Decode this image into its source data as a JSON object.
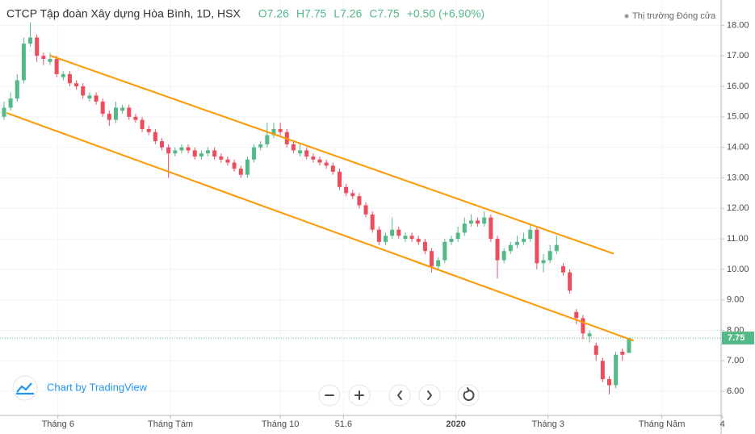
{
  "chart_data": {
    "type": "candlestick",
    "title": "CTCP Tập đoàn Xây dựng Hòa Bình, 1D, HSX",
    "header_values": [
      "O7.26",
      "H7.75",
      "L7.26",
      "C7.75",
      "+0.50 (+6.90%)"
    ],
    "status": "Thị trường Đóng cửa",
    "watermark": "Chart by TradingView",
    "up_color": "#53b987",
    "down_color": "#eb4d5c",
    "line_color": "#ff9800",
    "candles": [
      [
        15.0,
        15.5,
        14.9,
        15.3
      ],
      [
        15.3,
        15.8,
        15.2,
        15.6
      ],
      [
        15.6,
        16.4,
        15.5,
        16.2
      ],
      [
        16.2,
        17.6,
        16.1,
        17.4
      ],
      [
        17.4,
        18.1,
        17.3,
        17.6
      ],
      [
        17.6,
        17.7,
        16.8,
        17.0
      ],
      [
        17.0,
        17.1,
        16.7,
        16.9
      ],
      [
        16.8,
        17.1,
        16.7,
        16.9
      ],
      [
        16.9,
        17.0,
        16.3,
        16.4
      ],
      [
        16.3,
        16.5,
        16.2,
        16.4
      ],
      [
        16.4,
        16.5,
        16.0,
        16.1
      ],
      [
        16.1,
        16.2,
        15.9,
        16.0
      ],
      [
        16.0,
        16.1,
        15.6,
        15.7
      ],
      [
        15.6,
        15.8,
        15.5,
        15.7
      ],
      [
        15.7,
        15.8,
        15.4,
        15.5
      ],
      [
        15.5,
        15.6,
        15.0,
        15.1
      ],
      [
        15.1,
        15.2,
        14.7,
        14.9
      ],
      [
        14.9,
        15.5,
        14.8,
        15.3
      ],
      [
        15.2,
        15.4,
        15.1,
        15.3
      ],
      [
        15.3,
        15.4,
        14.9,
        15.0
      ],
      [
        15.0,
        15.1,
        14.8,
        14.9
      ],
      [
        14.9,
        15.0,
        14.5,
        14.6
      ],
      [
        14.6,
        14.7,
        14.4,
        14.5
      ],
      [
        14.5,
        14.6,
        14.1,
        14.2
      ],
      [
        14.2,
        14.3,
        13.9,
        14.0
      ],
      [
        14.0,
        14.1,
        13.0,
        13.8
      ],
      [
        13.8,
        14.0,
        13.7,
        13.9
      ],
      [
        13.9,
        14.1,
        13.8,
        14.0
      ],
      [
        14.0,
        14.1,
        13.8,
        13.9
      ],
      [
        13.9,
        14.0,
        13.6,
        13.7
      ],
      [
        13.7,
        13.9,
        13.6,
        13.8
      ],
      [
        13.8,
        14.0,
        13.7,
        13.9
      ],
      [
        13.9,
        14.0,
        13.6,
        13.7
      ],
      [
        13.7,
        13.8,
        13.5,
        13.6
      ],
      [
        13.6,
        13.7,
        13.4,
        13.5
      ],
      [
        13.5,
        13.6,
        13.2,
        13.3
      ],
      [
        13.3,
        13.4,
        13.0,
        13.1
      ],
      [
        13.1,
        13.7,
        13.0,
        13.6
      ],
      [
        13.6,
        14.1,
        13.5,
        14.0
      ],
      [
        14.0,
        14.2,
        13.9,
        14.1
      ],
      [
        14.1,
        14.8,
        14.0,
        14.4
      ],
      [
        14.4,
        14.8,
        14.3,
        14.6
      ],
      [
        14.6,
        14.8,
        14.4,
        14.5
      ],
      [
        14.5,
        14.6,
        14.0,
        14.1
      ],
      [
        14.1,
        14.2,
        13.8,
        13.9
      ],
      [
        13.8,
        14.1,
        13.7,
        13.9
      ],
      [
        13.9,
        14.0,
        13.6,
        13.7
      ],
      [
        13.7,
        13.8,
        13.5,
        13.6
      ],
      [
        13.6,
        13.7,
        13.4,
        13.5
      ],
      [
        13.5,
        13.6,
        13.3,
        13.4
      ],
      [
        13.4,
        13.5,
        13.1,
        13.2
      ],
      [
        13.2,
        13.3,
        12.6,
        12.7
      ],
      [
        12.7,
        12.8,
        12.4,
        12.5
      ],
      [
        12.5,
        12.6,
        12.3,
        12.4
      ],
      [
        12.4,
        12.5,
        12.0,
        12.1
      ],
      [
        12.1,
        12.2,
        11.7,
        11.8
      ],
      [
        11.8,
        11.9,
        11.2,
        11.3
      ],
      [
        11.3,
        11.4,
        10.8,
        10.9
      ],
      [
        10.9,
        11.2,
        10.8,
        11.1
      ],
      [
        11.1,
        11.7,
        11.0,
        11.3
      ],
      [
        11.3,
        11.4,
        11.0,
        11.1
      ],
      [
        11.0,
        11.2,
        10.9,
        11.1
      ],
      [
        11.1,
        11.2,
        10.9,
        11.0
      ],
      [
        11.0,
        11.1,
        10.8,
        10.9
      ],
      [
        10.9,
        11.0,
        10.5,
        10.6
      ],
      [
        10.6,
        10.7,
        9.9,
        10.1
      ],
      [
        10.1,
        10.4,
        10.0,
        10.3
      ],
      [
        10.3,
        11.0,
        10.2,
        10.9
      ],
      [
        10.9,
        11.1,
        10.8,
        11.0
      ],
      [
        11.0,
        11.4,
        10.9,
        11.2
      ],
      [
        11.2,
        11.7,
        11.1,
        11.5
      ],
      [
        11.5,
        11.8,
        11.4,
        11.6
      ],
      [
        11.6,
        11.7,
        11.4,
        11.5
      ],
      [
        11.5,
        11.9,
        11.4,
        11.7
      ],
      [
        11.7,
        11.8,
        10.9,
        11.0
      ],
      [
        11.0,
        11.1,
        9.7,
        10.3
      ],
      [
        10.3,
        10.7,
        10.2,
        10.6
      ],
      [
        10.6,
        10.9,
        10.5,
        10.8
      ],
      [
        10.8,
        11.1,
        10.7,
        10.9
      ],
      [
        10.9,
        11.2,
        10.8,
        11.0
      ],
      [
        11.0,
        11.5,
        10.9,
        11.3
      ],
      [
        11.3,
        11.4,
        10.0,
        10.2
      ],
      [
        10.2,
        10.5,
        9.9,
        10.3
      ],
      [
        10.3,
        10.8,
        10.2,
        10.6
      ],
      [
        10.6,
        11.1,
        10.5,
        10.8
      ],
      [
        10.1,
        10.2,
        9.8,
        9.9
      ],
      [
        9.9,
        10.0,
        9.2,
        9.3
      ],
      [
        8.6,
        8.7,
        8.2,
        8.4
      ],
      [
        8.4,
        8.5,
        7.7,
        7.9
      ],
      [
        7.8,
        8.0,
        7.6,
        7.9
      ],
      [
        7.5,
        7.6,
        7.0,
        7.2
      ],
      [
        7.0,
        7.1,
        6.3,
        6.4
      ],
      [
        6.4,
        6.5,
        5.9,
        6.2
      ],
      [
        6.2,
        7.3,
        6.1,
        7.2
      ],
      [
        7.3,
        7.4,
        7.0,
        7.2
      ],
      [
        7.26,
        7.75,
        7.26,
        7.75
      ]
    ],
    "last_price": 7.75,
    "trendlines": [
      {
        "x": [
          7.0,
          92.7
        ],
        "y": [
          17.01,
          10.51
        ]
      },
      {
        "x": [
          0.37,
          95.7
        ],
        "y": [
          15.13,
          7.66
        ]
      }
    ],
    "xlim": [
      -0.61,
      109.0
    ],
    "xticks": [
      {
        "value": 8.2,
        "label": "Tháng 6"
      },
      {
        "value": 25.3,
        "label": "Tháng Tám"
      },
      {
        "value": 42.0,
        "label": "Tháng 10"
      },
      51.6,
      {
        "value": 68.7,
        "label": "2020"
      },
      {
        "value": 82.7,
        "label": "Tháng 3"
      },
      {
        "value": 100.0,
        "label": "Tháng Năm"
      },
      {
        "value": 109.2,
        "label": "4"
      }
    ],
    "ylim": [
      5.21,
      18.83
    ],
    "yticks": [
      {
        "value": 6,
        "label": "6.00"
      },
      {
        "value": 7,
        "label": "7.00"
      },
      {
        "value": 8,
        "label": "8.00"
      },
      {
        "value": 9,
        "label": "9.00"
      },
      {
        "value": 10,
        "label": "10.00"
      },
      {
        "value": 11,
        "label": "11.00"
      },
      {
        "value": 12,
        "label": "12.00"
      },
      {
        "value": 13,
        "label": "13.00"
      },
      {
        "value": 14,
        "label": "14.00"
      },
      {
        "value": 15,
        "label": "15.00"
      },
      {
        "value": 16,
        "label": "16.00"
      },
      {
        "value": 17,
        "label": "17.00"
      },
      {
        "value": 18,
        "label": "18.00"
      }
    ],
    "grid": true
  }
}
